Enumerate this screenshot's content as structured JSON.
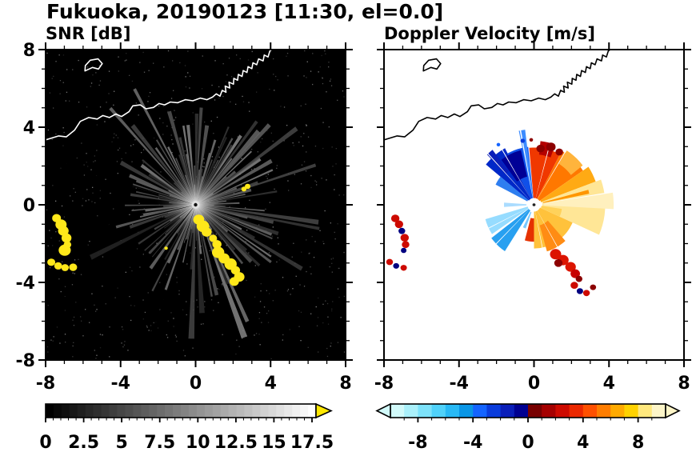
{
  "title": "Fukuoka, 20190123 [11:30, el=0.0]",
  "chart_data": [
    {
      "type": "heatmap",
      "variant": "radar_ppi",
      "title": "SNR [dB]",
      "xlabel": "",
      "ylabel": "",
      "xlim": [
        -8,
        8
      ],
      "ylim": [
        -8,
        8
      ],
      "xticks": [
        -8,
        -4,
        0,
        4,
        8
      ],
      "yticks": [
        -8,
        -4,
        0,
        4,
        8
      ],
      "minor_tick_step": 1,
      "background": "#000000",
      "radar_center": [
        0,
        0
      ],
      "colorbar": {
        "range": [
          0,
          17.5
        ],
        "label_values": [
          "0",
          "2.5",
          "5",
          "7.5",
          "10",
          "12.5",
          "15",
          "17.5"
        ],
        "style": "grayscale",
        "over_color": "#ffe800"
      },
      "features": {
        "noise_seed": 11,
        "noise_dots": 650,
        "ray_seed": 7,
        "ray_count": 150,
        "shadow_rays_deg": [
          [
            229.6,
            232.4
          ],
          [
            192.6,
            194.2
          ],
          [
            250.8,
            252.2
          ],
          [
            214.2,
            215.4
          ],
          [
            163.0,
            164.2
          ]
        ],
        "strong_echo_color": "#ffe81a",
        "strong_echoes": [
          {
            "r": 0.27,
            "points": [
              [
                0.18,
                -0.78
              ],
              [
                0.38,
                -1.08
              ],
              [
                0.62,
                -1.38
              ],
              [
                0.92,
                -1.72
              ],
              [
                1.15,
                -2.05
              ],
              [
                1.22,
                -2.45
              ],
              [
                1.52,
                -2.75
              ],
              [
                1.85,
                -3.05
              ],
              [
                2.1,
                -3.38
              ],
              [
                2.3,
                -3.7
              ],
              [
                2.05,
                -3.95
              ]
            ]
          },
          {
            "r": 0.24,
            "points": [
              [
                -7.4,
                -0.7
              ],
              [
                -7.2,
                -1.0
              ],
              [
                -7.05,
                -1.35
              ],
              [
                -6.9,
                -1.7
              ],
              [
                -6.85,
                -2.05
              ],
              [
                -6.95,
                -2.35
              ]
            ]
          },
          {
            "r": 0.18,
            "points": [
              [
                -7.7,
                -2.95
              ],
              [
                -7.35,
                -3.15
              ],
              [
                -6.95,
                -3.25
              ],
              [
                -6.55,
                -3.2
              ]
            ]
          },
          {
            "r": 0.12,
            "points": [
              [
                2.6,
                0.82
              ],
              [
                2.78,
                0.96
              ],
              [
                -1.55,
                -2.25
              ]
            ]
          }
        ]
      }
    },
    {
      "type": "heatmap",
      "variant": "radar_ppi",
      "title": "Doppler Velocity [m/s]",
      "xlabel": "",
      "ylabel": "",
      "xlim": [
        -8,
        8
      ],
      "ylim": [
        -8,
        8
      ],
      "xticks": [
        -8,
        -4,
        0,
        4,
        8
      ],
      "yticks": [
        -8,
        -4,
        0,
        4,
        8
      ],
      "minor_tick_step": 1,
      "background": "#ffffff",
      "radar_center": [
        0,
        0
      ],
      "colorbar": {
        "range": [
          -10,
          10
        ],
        "label_values": [
          "-8",
          "-4",
          "0",
          "4",
          "8"
        ],
        "style": "diverging",
        "colors": [
          "#d2fafa",
          "#aaf0fa",
          "#7de2fa",
          "#50d2fa",
          "#28b9f5",
          "#0a96e6",
          "#1464ff",
          "#0a3cdc",
          "#0a1eb9",
          "#000091",
          "#780000",
          "#a50000",
          "#cd0a00",
          "#eb2800",
          "#ff5000",
          "#ff7d00",
          "#ffaa00",
          "#ffd200",
          "#ffe87d",
          "#fdf5c8"
        ]
      },
      "features": {
        "wedges": [
          {
            "a0": 96,
            "a1": 118,
            "r0": 0.35,
            "r1": 3.0,
            "c": "#1050e8"
          },
          {
            "a0": 118,
            "a1": 141,
            "r0": 0.35,
            "r1": 3.3,
            "c": "#0028c8"
          },
          {
            "a0": 141,
            "a1": 153,
            "r0": 0.4,
            "r1": 2.3,
            "c": "#2e7ef0"
          },
          {
            "a0": 104,
            "a1": 127,
            "r0": 1.5,
            "r1": 2.9,
            "c": "#000096"
          },
          {
            "a0": 97,
            "a1": 102,
            "r0": 0.4,
            "r1": 3.9,
            "c": "#3c8cff"
          },
          {
            "a0": 128,
            "a1": 134,
            "r0": 2.2,
            "r1": 3.6,
            "c": "#0a1eb9"
          },
          {
            "a0": 62,
            "a1": 95,
            "r0": 0.35,
            "r1": 2.95,
            "c": "#f03800"
          },
          {
            "a0": 34,
            "a1": 62,
            "r0": 0.35,
            "r1": 3.15,
            "c": "#ff7800"
          },
          {
            "a0": 20,
            "a1": 34,
            "r0": 0.4,
            "r1": 3.5,
            "c": "#ffaa14"
          },
          {
            "a0": 38,
            "a1": 58,
            "r0": 2.5,
            "r1": 3.3,
            "c": "#ffb43c"
          },
          {
            "a0": 70,
            "a1": 84,
            "r0": 2.6,
            "r1": 3.3,
            "c": "#b40000"
          },
          {
            "a0": -24,
            "a1": 20,
            "r0": 0.45,
            "r1": 3.8,
            "c": "#ffe696"
          },
          {
            "a0": -3,
            "a1": 9,
            "r0": 0.5,
            "r1": 4.25,
            "c": "#fff0be"
          },
          {
            "a0": 11,
            "a1": 15,
            "r0": 0.5,
            "r1": 3.0,
            "c": "#ff9600"
          },
          {
            "a0": 270,
            "a1": 336,
            "r0": 0.35,
            "r1": 2.25,
            "c": "#ffc23c"
          },
          {
            "a0": 286,
            "a1": 312,
            "r0": 1.1,
            "r1": 2.5,
            "c": "#ff8c14"
          },
          {
            "a0": 255,
            "a1": 270,
            "r0": 0.7,
            "r1": 1.9,
            "c": "#e63200"
          },
          {
            "a0": 196,
            "a1": 214,
            "r0": 0.35,
            "r1": 2.7,
            "c": "#96dcff"
          },
          {
            "a0": 217,
            "a1": 237,
            "r0": 0.35,
            "r1": 2.85,
            "c": "#28a0f0"
          },
          {
            "a0": 243,
            "a1": 250,
            "r0": 0.4,
            "r1": 1.3,
            "c": "#78c8ff"
          },
          {
            "a0": 176,
            "a1": 184,
            "r0": 0.4,
            "r1": 1.6,
            "c": "#aadcff"
          },
          {
            "a0": 336,
            "a1": 352,
            "r0": 0.4,
            "r1": 1.5,
            "c": "#ffd25a"
          }
        ],
        "white_gaps_deg": [
          [
            100.2,
            101.2
          ],
          [
            120.5,
            121.3
          ],
          [
            132.6,
            133.4
          ],
          [
            58.2,
            59.0
          ],
          [
            74.5,
            75.3
          ],
          [
            299.5,
            300.3
          ],
          [
            224.5,
            225.3
          ],
          [
            8.5,
            9.3
          ],
          [
            206.0,
            206.8
          ],
          [
            281.0,
            281.8
          ]
        ],
        "blobs": [
          {
            "x": 0.35,
            "y": 2.9,
            "r": 0.22,
            "c": "#8c0000"
          },
          {
            "x": 0.9,
            "y": 2.98,
            "r": 0.25,
            "c": "#8c0000"
          },
          {
            "x": 1.35,
            "y": 2.72,
            "r": 0.2,
            "c": "#8c0000"
          },
          {
            "x": -0.15,
            "y": 3.35,
            "r": 0.1,
            "c": "#8c0000"
          },
          {
            "x": -0.6,
            "y": 3.3,
            "r": 0.12,
            "c": "#0a3cdc"
          },
          {
            "x": -1.9,
            "y": 3.1,
            "r": 0.1,
            "c": "#1464ff"
          },
          {
            "x": 1.15,
            "y": -2.55,
            "r": 0.3,
            "c": "#dc1400"
          },
          {
            "x": 1.55,
            "y": -2.85,
            "r": 0.3,
            "c": "#dc1400"
          },
          {
            "x": 1.95,
            "y": -3.2,
            "r": 0.28,
            "c": "#dc1400"
          },
          {
            "x": 2.2,
            "y": -3.55,
            "r": 0.25,
            "c": "#c80000"
          },
          {
            "x": 1.3,
            "y": -3.0,
            "r": 0.22,
            "c": "#8c0000"
          },
          {
            "x": 2.4,
            "y": -3.82,
            "r": 0.18,
            "c": "#8c0000"
          },
          {
            "x": -7.4,
            "y": -0.7,
            "r": 0.22,
            "c": "#cd0a00"
          },
          {
            "x": -7.2,
            "y": -1.0,
            "r": 0.22,
            "c": "#cd0a00"
          },
          {
            "x": -7.05,
            "y": -1.35,
            "r": 0.18,
            "c": "#000080"
          },
          {
            "x": -6.9,
            "y": -1.7,
            "r": 0.22,
            "c": "#cd0a00"
          },
          {
            "x": -6.85,
            "y": -2.05,
            "r": 0.2,
            "c": "#cd0a00"
          },
          {
            "x": -6.95,
            "y": -2.35,
            "r": 0.15,
            "c": "#000080"
          },
          {
            "x": -7.7,
            "y": -2.95,
            "r": 0.18,
            "c": "#cd0a00"
          },
          {
            "x": -7.35,
            "y": -3.15,
            "r": 0.16,
            "c": "#000080"
          },
          {
            "x": -6.95,
            "y": -3.25,
            "r": 0.17,
            "c": "#cd0a00"
          },
          {
            "x": 2.15,
            "y": -4.15,
            "r": 0.2,
            "c": "#cd0a00"
          },
          {
            "x": 2.45,
            "y": -4.45,
            "r": 0.17,
            "c": "#000080"
          },
          {
            "x": 2.8,
            "y": -4.55,
            "r": 0.18,
            "c": "#cd0a00"
          },
          {
            "x": 3.15,
            "y": -4.25,
            "r": 0.16,
            "c": "#8c0000"
          },
          {
            "x": 0.0,
            "y": 0.0,
            "r": 0.08,
            "c": "#222222"
          }
        ]
      }
    }
  ],
  "coastline": {
    "color_left": "#ffffff",
    "color_right": "#000000",
    "main": [
      [
        -8.0,
        3.35
      ],
      [
        -7.3,
        3.55
      ],
      [
        -6.9,
        3.5
      ],
      [
        -6.45,
        3.85
      ],
      [
        -6.15,
        4.3
      ],
      [
        -5.7,
        4.5
      ],
      [
        -5.25,
        4.42
      ],
      [
        -4.95,
        4.6
      ],
      [
        -4.6,
        4.5
      ],
      [
        -4.25,
        4.68
      ],
      [
        -3.95,
        4.55
      ],
      [
        -3.55,
        4.8
      ],
      [
        -3.35,
        5.1
      ],
      [
        -2.95,
        5.15
      ],
      [
        -2.65,
        4.95
      ],
      [
        -2.25,
        5.02
      ],
      [
        -1.95,
        5.22
      ],
      [
        -1.65,
        5.15
      ],
      [
        -1.35,
        5.3
      ],
      [
        -0.95,
        5.26
      ],
      [
        -0.55,
        5.42
      ],
      [
        -0.15,
        5.36
      ],
      [
        0.25,
        5.5
      ],
      [
        0.6,
        5.42
      ],
      [
        0.9,
        5.55
      ],
      [
        1.1,
        5.72
      ],
      [
        1.3,
        5.6
      ],
      [
        1.42,
        5.9
      ],
      [
        1.62,
        5.8
      ],
      [
        1.58,
        6.12
      ],
      [
        1.82,
        6.02
      ],
      [
        1.78,
        6.32
      ],
      [
        2.02,
        6.22
      ],
      [
        2.04,
        6.52
      ],
      [
        2.24,
        6.42
      ],
      [
        2.28,
        6.72
      ],
      [
        2.48,
        6.62
      ],
      [
        2.54,
        6.92
      ],
      [
        2.74,
        6.82
      ],
      [
        2.8,
        7.12
      ],
      [
        3.0,
        7.02
      ],
      [
        3.06,
        7.32
      ],
      [
        3.26,
        7.22
      ],
      [
        3.36,
        7.52
      ],
      [
        3.6,
        7.42
      ],
      [
        3.66,
        7.72
      ],
      [
        3.86,
        7.62
      ],
      [
        3.96,
        7.92
      ],
      [
        4.12,
        8.05
      ]
    ],
    "island": [
      [
        -5.9,
        6.9
      ],
      [
        -5.5,
        7.08
      ],
      [
        -5.18,
        7.0
      ],
      [
        -4.98,
        7.28
      ],
      [
        -5.2,
        7.52
      ],
      [
        -5.62,
        7.45
      ],
      [
        -5.88,
        7.18
      ]
    ]
  }
}
